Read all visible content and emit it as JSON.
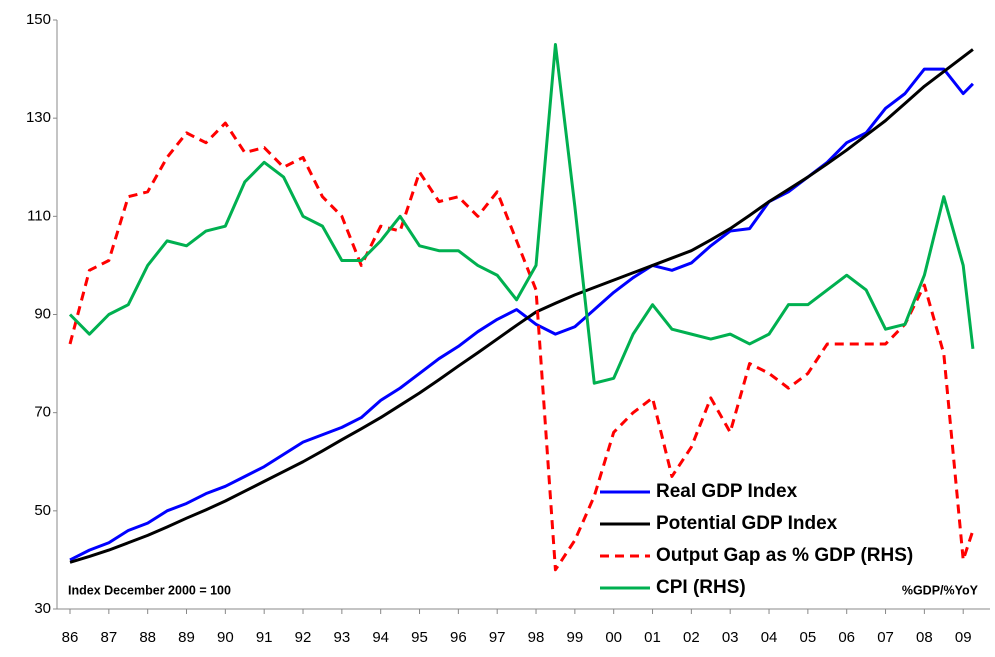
{
  "chart_data": {
    "type": "line",
    "annotations": [
      "Index December 2000 = 100",
      "%GDP/%YoY"
    ],
    "x": [
      1986,
      1986.5,
      1987,
      1987.5,
      1988,
      1988.5,
      1989,
      1989.5,
      1990,
      1990.5,
      1991,
      1991.5,
      1992,
      1992.5,
      1993,
      1993.5,
      1994,
      1994.5,
      1995,
      1995.5,
      1996,
      1996.5,
      1997,
      1997.5,
      1998,
      1998.5,
      1999,
      1999.5,
      2000,
      2000.5,
      2001,
      2001.5,
      2002,
      2002.5,
      2003,
      2003.5,
      2004,
      2004.5,
      2005,
      2005.5,
      2006,
      2006.5,
      2007,
      2007.5,
      2008,
      2008.5,
      2009,
      2009.25
    ],
    "xlim": [
      1985.665,
      2009.69
    ],
    "xticks": [
      {
        "value": 1986,
        "label": "86"
      },
      {
        "value": 1987,
        "label": "87"
      },
      {
        "value": 1988,
        "label": "88"
      },
      {
        "value": 1989,
        "label": "89"
      },
      {
        "value": 1990,
        "label": "90"
      },
      {
        "value": 1991,
        "label": "91"
      },
      {
        "value": 1992,
        "label": "92"
      },
      {
        "value": 1993,
        "label": "93"
      },
      {
        "value": 1994,
        "label": "94"
      },
      {
        "value": 1995,
        "label": "95"
      },
      {
        "value": 1996,
        "label": "96"
      },
      {
        "value": 1997,
        "label": "97"
      },
      {
        "value": 1998,
        "label": "98"
      },
      {
        "value": 1999,
        "label": "99"
      },
      {
        "value": 2000,
        "label": "00"
      },
      {
        "value": 2001,
        "label": "01"
      },
      {
        "value": 2002,
        "label": "02"
      },
      {
        "value": 2003,
        "label": "03"
      },
      {
        "value": 2004,
        "label": "04"
      },
      {
        "value": 2005,
        "label": "05"
      },
      {
        "value": 2006,
        "label": "06"
      },
      {
        "value": 2007,
        "label": "07"
      },
      {
        "value": 2008,
        "label": "08"
      },
      {
        "value": 2009,
        "label": "09"
      }
    ],
    "ylim": [
      30,
      150
    ],
    "yticks": [
      30,
      50,
      70,
      90,
      110,
      130,
      150
    ],
    "grid": false,
    "legend": "lower right",
    "series": [
      {
        "name": "Real GDP Index",
        "color": "#0000ff",
        "dash": false,
        "values": [
          40,
          42,
          43.5,
          46,
          47.5,
          50,
          51.5,
          53.5,
          55,
          57,
          59,
          61.5,
          64,
          65.5,
          67,
          69,
          72.5,
          75,
          78,
          81,
          83.5,
          86.5,
          89,
          91,
          88,
          86,
          87.5,
          91,
          94.5,
          97.5,
          100,
          99,
          100.5,
          104,
          107,
          107.5,
          113,
          115,
          118,
          121,
          125,
          127,
          132,
          135,
          140,
          140,
          135,
          137
        ]
      },
      {
        "name": "Potential GDP Index",
        "color": "#000000",
        "dash": false,
        "values": [
          39.5,
          40.7,
          42,
          43.5,
          45,
          46.7,
          48.5,
          50.2,
          52,
          54,
          56,
          58,
          60,
          62.2,
          64.5,
          66.7,
          69,
          71.5,
          74,
          76.7,
          79.5,
          82.2,
          85,
          87.8,
          90.5,
          92.3,
          94,
          95.5,
          97,
          98.5,
          100,
          101.5,
          103,
          105.2,
          107.5,
          110.2,
          113,
          115.5,
          118,
          120.7,
          123.5,
          126.5,
          129.5,
          133,
          136.5,
          139.5,
          142.5,
          144
        ]
      },
      {
        "name": "Output Gap as % GDP (RHS)",
        "color": "#ff0000",
        "dash": true,
        "values": [
          84,
          99,
          101,
          114,
          115,
          122,
          127,
          125,
          129,
          123,
          124,
          120,
          122,
          114,
          110,
          100,
          108,
          107,
          119,
          113,
          114,
          110,
          115,
          105,
          95,
          38,
          44,
          53,
          66,
          70,
          73,
          57,
          63,
          73,
          66,
          80,
          78,
          75,
          78,
          84,
          84,
          84,
          84,
          88,
          96,
          82,
          40,
          46
        ]
      },
      {
        "name": "CPI (RHS)",
        "color": "#00b050",
        "dash": false,
        "values": [
          90,
          86,
          90,
          92,
          100,
          105,
          104,
          107,
          108,
          117,
          121,
          118,
          110,
          108,
          101,
          101,
          105,
          110,
          104,
          103,
          103,
          100,
          98,
          93,
          100,
          145,
          112,
          76,
          77,
          86,
          92,
          87,
          86,
          85,
          86,
          84,
          86,
          92,
          92,
          95,
          98,
          95,
          87,
          88,
          98,
          114,
          100,
          83
        ]
      }
    ]
  }
}
